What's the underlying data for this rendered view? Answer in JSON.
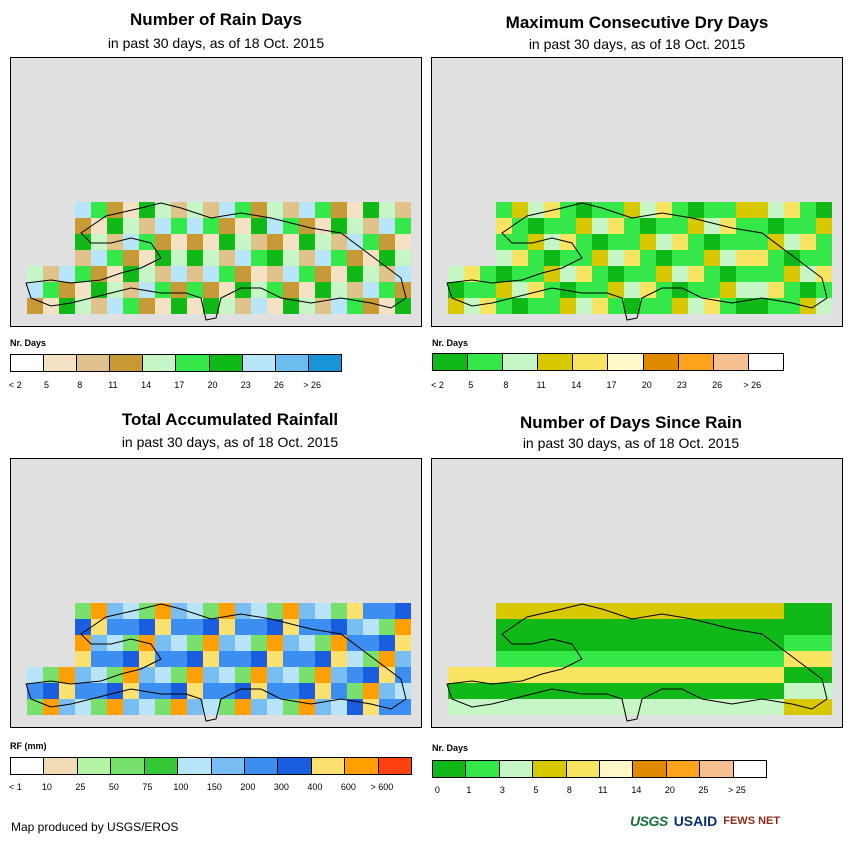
{
  "panels": [
    {
      "id": "rain-days",
      "title": "Number of Rain Days",
      "subtitle": "in past 30 days, as of 18 Oct. 2015",
      "legend_title": "Nr. Days",
      "legend_colors": [
        "#ffffff",
        "#f5e2c4",
        "#e2c28c",
        "#c79a36",
        "#c6f5c6",
        "#34e84a",
        "#10b818",
        "#b8e6f8",
        "#6cbcf0",
        "#1a94d8"
      ],
      "legend_labels": [
        "< 2",
        "5",
        "8",
        "11",
        "14",
        "17",
        "20",
        "23",
        "26",
        "> 26"
      ]
    },
    {
      "id": "max-dry-days",
      "title": "Maximum Consecutive Dry Days",
      "subtitle": "in past 30 days, as of 18 Oct. 2015",
      "legend_title": "Nr. Days",
      "legend_colors": [
        "#10b818",
        "#34e84a",
        "#c6f5c6",
        "#d8c800",
        "#f8e460",
        "#fff8c8",
        "#e08a00",
        "#ffa41a",
        "#f8c090",
        "#ffffff"
      ],
      "legend_labels": [
        "< 2",
        "5",
        "8",
        "11",
        "14",
        "17",
        "20",
        "23",
        "26",
        "> 26"
      ]
    },
    {
      "id": "total-rainfall",
      "title": "Total Accumulated Rainfall",
      "subtitle": "in past 30 days, as of 18 Oct. 2015",
      "legend_title": "RF (mm)",
      "legend_colors": [
        "#ffffff",
        "#f0dcb4",
        "#b4f4a4",
        "#78e06c",
        "#34c838",
        "#b8e4f8",
        "#78bef4",
        "#3c8ef0",
        "#1a5ee0",
        "#fce070",
        "#ffa000",
        "#ff4010"
      ],
      "legend_labels": [
        "< 1",
        "10",
        "25",
        "50",
        "75",
        "100",
        "150",
        "200",
        "300",
        "400",
        "600",
        "> 600"
      ]
    },
    {
      "id": "days-since-rain",
      "title": "Number of Days Since Rain",
      "subtitle": "in past 30 days, as of 18 Oct. 2015",
      "legend_title": "Nr. Days",
      "legend_colors": [
        "#10b818",
        "#34e84a",
        "#c6f5c6",
        "#d8c800",
        "#f8e460",
        "#fff8c8",
        "#e08a00",
        "#ffa41a",
        "#f8c090",
        "#ffffff"
      ],
      "legend_labels": [
        "0",
        "1",
        "3",
        "5",
        "8",
        "11",
        "14",
        "20",
        "25",
        "> 25"
      ]
    }
  ],
  "footer": "Map produced by USGS/EROS",
  "logos": {
    "usgs": "USGS",
    "usaid": "USAID",
    "fews": "FEWS NET"
  }
}
